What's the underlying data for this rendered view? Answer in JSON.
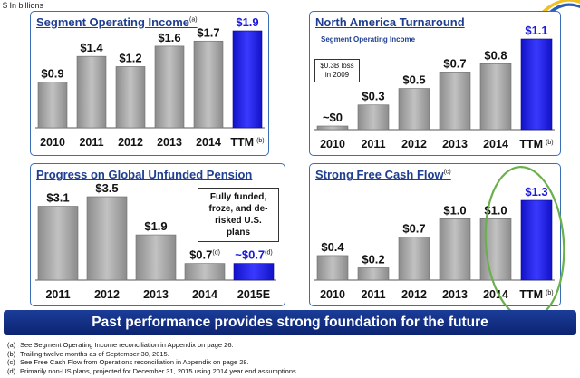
{
  "unit_label": "$ In billions",
  "banner": "Past performance provides strong foundation for the future",
  "footnotes": [
    {
      "key": "(a)",
      "text": "See Segment Operating Income reconciliation in Appendix on page 26."
    },
    {
      "key": "(b)",
      "text": "Trailing twelve months as of September 30, 2015."
    },
    {
      "key": "(c)",
      "text": "See Free Cash Flow from Operations reconciliation in Appendix on page 28."
    },
    {
      "key": "(d)",
      "text": "Primarily non-US plans, projected for December 31, 2015 using 2014 year end assumptions."
    }
  ],
  "panels": {
    "soi": {
      "title": "Segment Operating Income",
      "title_sup": "(a)"
    },
    "na": {
      "title": "North America Turnaround",
      "subtitle": "Segment Operating Income",
      "annotation": "$0.3B loss in 2009"
    },
    "pension": {
      "title": "Progress on Global Unfunded Pension",
      "annotation": "Fully funded, froze, and de-risked U.S. plans"
    },
    "fcf": {
      "title": "Strong Free Cash Flow",
      "title_sup": "(c)"
    }
  },
  "colors": {
    "bar_gray": "#9a9a9a",
    "bar_blue": "#1a1adc",
    "title_blue": "#1f3e8f",
    "panel_border": "#3b6fb5",
    "highlight_ellipse": "#6ab04c"
  },
  "chart_data": [
    {
      "id": "soi",
      "type": "bar",
      "title": "Segment Operating Income",
      "categories": [
        "2010",
        "2011",
        "2012",
        "2013",
        "2014",
        "TTM"
      ],
      "category_sups": [
        "",
        "",
        "",
        "",
        "",
        "(b)"
      ],
      "values": [
        0.9,
        1.4,
        1.2,
        1.6,
        1.7,
        1.9
      ],
      "labels": [
        "$0.9",
        "$1.4",
        "$1.2",
        "$1.6",
        "$1.7",
        "$1.9"
      ],
      "label_sups": [
        "",
        "",
        "",
        "",
        "",
        ""
      ],
      "highlight": [
        false,
        false,
        false,
        false,
        false,
        true
      ],
      "ylim": [
        0,
        1.9
      ]
    },
    {
      "id": "na",
      "type": "bar",
      "title": "North America Turnaround",
      "categories": [
        "2010",
        "2011",
        "2012",
        "2013",
        "2014",
        "TTM"
      ],
      "category_sups": [
        "",
        "",
        "",
        "",
        "",
        "(b)"
      ],
      "values": [
        0.0,
        0.3,
        0.5,
        0.7,
        0.8,
        1.1
      ],
      "labels": [
        "~$0",
        "$0.3",
        "$0.5",
        "$0.7",
        "$0.8",
        "$1.1"
      ],
      "label_sups": [
        "",
        "",
        "",
        "",
        "",
        ""
      ],
      "highlight": [
        false,
        false,
        false,
        false,
        false,
        true
      ],
      "ylim": [
        0,
        1.1
      ]
    },
    {
      "id": "pension",
      "type": "bar",
      "title": "Progress on Global Unfunded Pension",
      "categories": [
        "2011",
        "2012",
        "2013",
        "2014",
        "2015E"
      ],
      "category_sups": [
        "",
        "",
        "",
        "",
        ""
      ],
      "values": [
        3.1,
        3.5,
        1.9,
        0.7,
        0.7
      ],
      "labels": [
        "$3.1",
        "$3.5",
        "$1.9",
        "$0.7",
        "~$0.7"
      ],
      "label_sups": [
        "",
        "",
        "",
        "(d)",
        "(d)"
      ],
      "highlight": [
        false,
        false,
        false,
        false,
        true
      ],
      "ylim": [
        0,
        3.5
      ]
    },
    {
      "id": "fcf",
      "type": "bar",
      "title": "Strong Free Cash Flow",
      "categories": [
        "2010",
        "2011",
        "2012",
        "2013",
        "2014",
        "TTM"
      ],
      "category_sups": [
        "",
        "",
        "",
        "",
        "",
        "(b)"
      ],
      "values": [
        0.4,
        0.2,
        0.7,
        1.0,
        1.0,
        1.3
      ],
      "labels": [
        "$0.4",
        "$0.2",
        "$0.7",
        "$1.0",
        "$1.0",
        "$1.3"
      ],
      "label_sups": [
        "",
        "",
        "",
        "",
        "",
        ""
      ],
      "highlight": [
        false,
        false,
        false,
        false,
        false,
        true
      ],
      "ylim": [
        0,
        1.3
      ]
    }
  ]
}
